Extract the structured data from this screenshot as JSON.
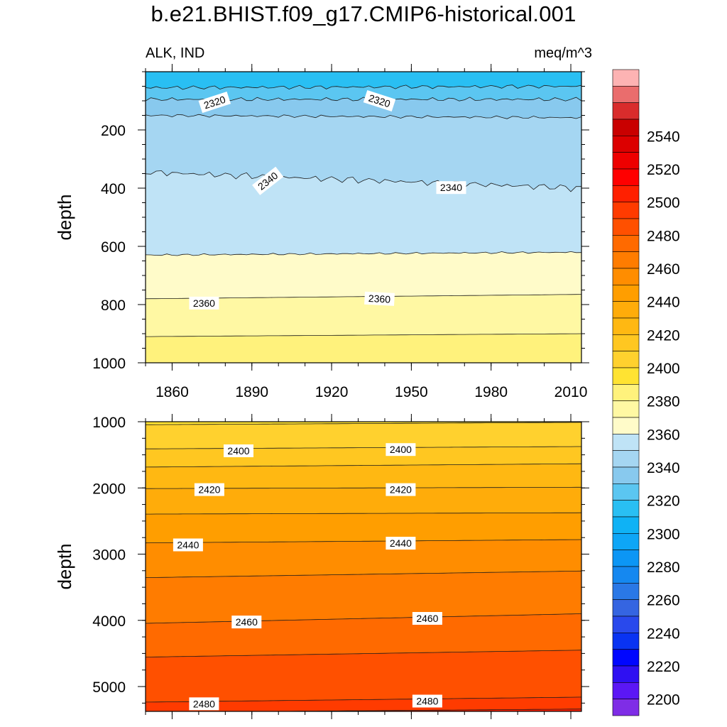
{
  "chart_data": {
    "type": "contour",
    "title": "b.e21.BHIST.f09_g17.CMIP6-historical.001",
    "left_string": "ALK, IND",
    "right_string": "meq/m^3",
    "ylabel": "depth",
    "x_range": [
      1850,
      2014
    ],
    "x_ticks": [
      1860,
      1890,
      1920,
      1950,
      1980,
      2010
    ],
    "panels": [
      {
        "name": "upper",
        "ylim": [
          0,
          1000
        ],
        "y_ticks": [
          200,
          400,
          600,
          800,
          1000
        ],
        "y_tick_labels": [
          "200",
          "400",
          "600",
          "800",
          "1000"
        ],
        "show_x_tick_labels": true,
        "contours": [
          {
            "level": 2310,
            "x": [
              1850,
              2014
            ],
            "depth": [
              55,
              50
            ],
            "wobble": 4
          },
          {
            "level": 2320,
            "x": [
              1850,
              2014
            ],
            "depth": [
              95,
              95
            ],
            "wobble": 4
          },
          {
            "level": 2330,
            "x": [
              1850,
              2014
            ],
            "depth": [
              150,
              158
            ],
            "wobble": 3
          },
          {
            "level": 2340,
            "x": [
              1850,
              2014
            ],
            "depth": [
              345,
              400
            ],
            "wobble": 7
          },
          {
            "level": 2350,
            "x": [
              1850,
              2014
            ],
            "depth": [
              630,
              620
            ],
            "wobble": 2
          },
          {
            "level": 2360,
            "x": [
              1850,
              2014
            ],
            "depth": [
              780,
              765
            ],
            "wobble": 0
          },
          {
            "level": 2370,
            "x": [
              1850,
              2014
            ],
            "depth": [
              910,
              900
            ],
            "wobble": 0
          }
        ],
        "labels": [
          {
            "text": "2320",
            "x": 1876,
            "depth": 105,
            "rot": -18
          },
          {
            "text": "2320",
            "x": 1938,
            "depth": 100,
            "rot": 18
          },
          {
            "text": "2340",
            "x": 1896,
            "depth": 375,
            "rot": -38
          },
          {
            "text": "2340",
            "x": 1965,
            "depth": 398,
            "rot": 0
          },
          {
            "text": "2360",
            "x": 1872,
            "depth": 795,
            "rot": 0
          },
          {
            "text": "2360",
            "x": 1938,
            "depth": 780,
            "rot": 3
          }
        ]
      },
      {
        "name": "lower",
        "ylim": [
          1000,
          5375
        ],
        "y_ticks": [
          1000,
          2000,
          3000,
          4000,
          5000
        ],
        "y_tick_labels": [
          "1000",
          "2000",
          "3000",
          "4000",
          "5000"
        ],
        "show_x_tick_labels": false,
        "contours": [
          {
            "level": 2390,
            "x": [
              1850,
              2014
            ],
            "depth": [
              1045,
              1010
            ],
            "wobble": 0
          },
          {
            "level": 2400,
            "x": [
              1850,
              2014
            ],
            "depth": [
              1410,
              1375
            ],
            "wobble": 0
          },
          {
            "level": 2410,
            "x": [
              1850,
              2014
            ],
            "depth": [
              1685,
              1635
            ],
            "wobble": 0
          },
          {
            "level": 2420,
            "x": [
              1850,
              2014
            ],
            "depth": [
              2010,
              1990
            ],
            "wobble": 0
          },
          {
            "level": 2430,
            "x": [
              1850,
              2014
            ],
            "depth": [
              2395,
              2375
            ],
            "wobble": 0
          },
          {
            "level": 2440,
            "x": [
              1850,
              2014
            ],
            "depth": [
              2830,
              2780
            ],
            "wobble": 0
          },
          {
            "level": 2450,
            "x": [
              1850,
              2014
            ],
            "depth": [
              3355,
              3255
            ],
            "wobble": 0
          },
          {
            "level": 2460,
            "x": [
              1850,
              2014
            ],
            "depth": [
              4045,
              3900
            ],
            "wobble": 0
          },
          {
            "level": 2470,
            "x": [
              1850,
              2014
            ],
            "depth": [
              4555,
              4450
            ],
            "wobble": 0
          },
          {
            "level": 2480,
            "x": [
              1850,
              2014
            ],
            "depth": [
              5235,
              5160
            ],
            "wobble": 0
          },
          {
            "level": 2490,
            "x": [
              1850,
              2014
            ],
            "depth": [
              5390,
              5340
            ],
            "wobble": 0
          }
        ],
        "labels": [
          {
            "text": "2400",
            "x": 1885,
            "depth": 1440,
            "rot": 0
          },
          {
            "text": "2400",
            "x": 1946,
            "depth": 1420,
            "rot": 0
          },
          {
            "text": "2420",
            "x": 1874,
            "depth": 2025,
            "rot": 0
          },
          {
            "text": "2420",
            "x": 1946,
            "depth": 2025,
            "rot": 0
          },
          {
            "text": "2440",
            "x": 1866,
            "depth": 2860,
            "rot": 0
          },
          {
            "text": "2440",
            "x": 1946,
            "depth": 2835,
            "rot": 0
          },
          {
            "text": "2460",
            "x": 1888,
            "depth": 4025,
            "rot": 0
          },
          {
            "text": "2460",
            "x": 1956,
            "depth": 3970,
            "rot": 0
          },
          {
            "text": "2480",
            "x": 1872,
            "depth": 5260,
            "rot": 0
          },
          {
            "text": "2480",
            "x": 1956,
            "depth": 5220,
            "rot": 0
          }
        ]
      }
    ],
    "colorbar": {
      "min_level": 2190,
      "step": 10,
      "label_values": [
        "2200",
        "2220",
        "2240",
        "2260",
        "2280",
        "2300",
        "2320",
        "2340",
        "2360",
        "2380",
        "2400",
        "2420",
        "2440",
        "2460",
        "2480",
        "2500",
        "2520",
        "2540"
      ],
      "colors": [
        "#7f2de6",
        "#5b17f5",
        "#2f10f2",
        "#0006ff",
        "#0933f2",
        "#2949ec",
        "#3565e1",
        "#2a78e6",
        "#1588f0",
        "#0c96f5",
        "#0ea6f6",
        "#0fb2f5",
        "#29bff3",
        "#5bc6f1",
        "#88c9ee",
        "#a5d6f2",
        "#bfe3f6",
        "#fffbc9",
        "#fff8a3",
        "#fff27c",
        "#ffe332",
        "#ffd12e",
        "#ffc721",
        "#ffb812",
        "#ffac0a",
        "#ff9e00",
        "#ff8d00",
        "#ff7c00",
        "#ff6a00",
        "#ff5000",
        "#ff3b00",
        "#ff2000",
        "#ff0000",
        "#ee0000",
        "#dc0000",
        "#c90000",
        "#d92c2c",
        "#ea6d6d",
        "#fdb3b3"
      ]
    }
  }
}
